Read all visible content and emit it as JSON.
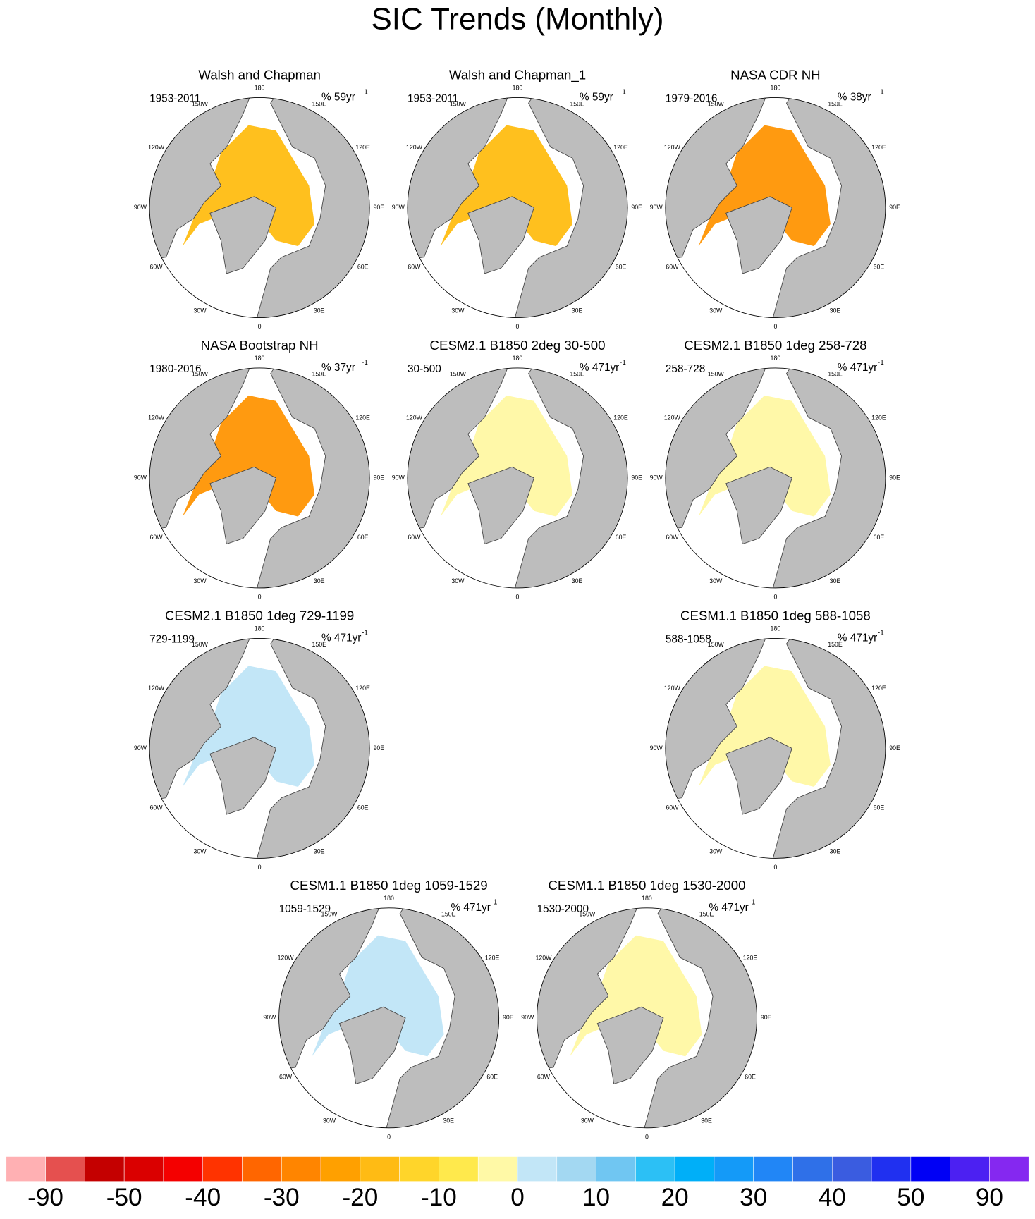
{
  "title": "SIC Trends (Monthly)",
  "longitude_labels": [
    "180",
    "150E",
    "120E",
    "90E",
    "60E",
    "30E",
    "0",
    "30W",
    "60W",
    "90W",
    "120W",
    "150W"
  ],
  "panels": [
    {
      "title": "Walsh and Chapman",
      "period": "1953-2011",
      "units": "% 59yr",
      "units_sup": "-1",
      "fill_color": "#ffc01e"
    },
    {
      "title": "Walsh and Chapman_1",
      "period": "1953-2011",
      "units": "% 59yr",
      "units_sup": "-1",
      "fill_color": "#ffc01e"
    },
    {
      "title": "NASA CDR NH",
      "period": "1979-2016",
      "units": "% 38yr",
      "units_sup": "-1",
      "fill_color": "#ff9a10"
    },
    {
      "title": "NASA Bootstrap NH",
      "period": "1980-2016",
      "units": "% 37yr",
      "units_sup": "-1",
      "fill_color": "#ff9a10"
    },
    {
      "title": "CESM2.1 B1850 2deg 30-500",
      "period": "30-500",
      "units": "% 471yr",
      "units_sup": "-1",
      "fill_color": "#fff8a8"
    },
    {
      "title": "CESM2.1 B1850 1deg 258-728",
      "period": "258-728",
      "units": "% 471yr",
      "units_sup": "-1",
      "fill_color": "#fff8a8"
    },
    {
      "title": "CESM2.1 B1850 1deg 729-1199",
      "period": "729-1199",
      "units": "% 471yr",
      "units_sup": "-1",
      "fill_color": "#c2e6f7"
    },
    {
      "title": "CESM1.1 B1850 1deg 588-1058",
      "period": "588-1058",
      "units": "% 471yr",
      "units_sup": "-1",
      "fill_color": "#fff8a8"
    },
    {
      "title": "CESM1.1 B1850 1deg 1059-1529",
      "period": "1059-1529",
      "units": "% 471yr",
      "units_sup": "-1",
      "fill_color": "#c2e6f7"
    },
    {
      "title": "CESM1.1 B1850 1deg 1530-2000",
      "period": "1530-2000",
      "units": "% 471yr",
      "units_sup": "-1",
      "fill_color": "#fff8a8"
    }
  ],
  "colorbar": {
    "colors": [
      "#ffb0b3",
      "#e5504f",
      "#c40000",
      "#da0000",
      "#f40000",
      "#ff3300",
      "#ff6600",
      "#ff8500",
      "#ffa000",
      "#ffbb14",
      "#ffd52a",
      "#ffe94c",
      "#fff9a6",
      "#c2e6f7",
      "#a3d8f2",
      "#70c6f2",
      "#2cc0f5",
      "#00aff8",
      "#149af8",
      "#2186f6",
      "#2f70e8",
      "#3a5ce0",
      "#2030f0",
      "#0000f5",
      "#4c20f2",
      "#8528f0"
    ],
    "labels": [
      -90,
      -50,
      -40,
      -30,
      -20,
      -10,
      0,
      10,
      20,
      30,
      40,
      50,
      90
    ]
  }
}
